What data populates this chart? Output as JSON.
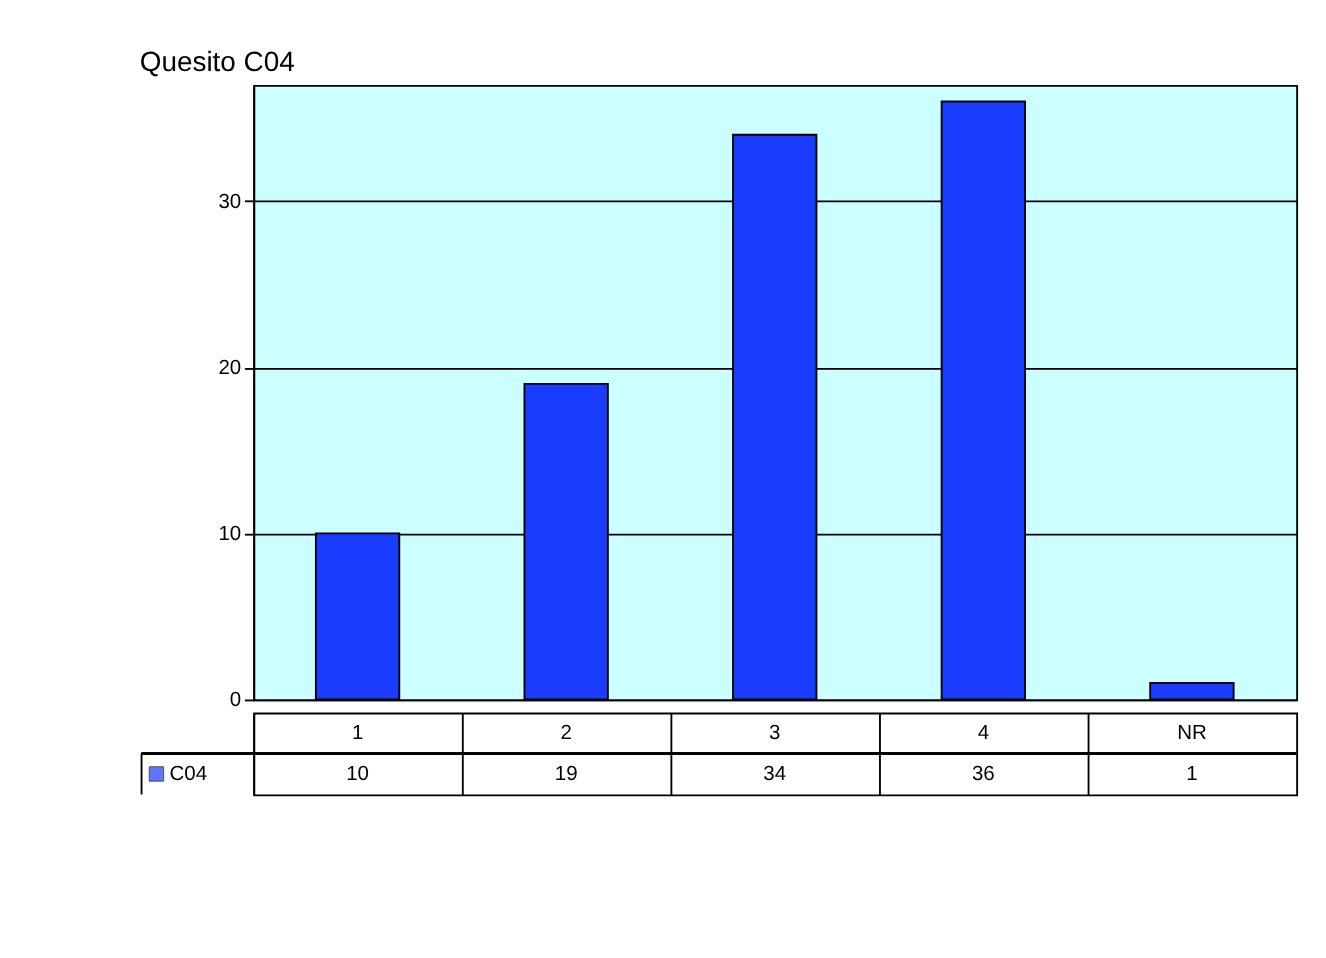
{
  "chart_data": {
    "type": "bar",
    "title": "Quesito C04",
    "categories": [
      "1",
      "2",
      "3",
      "4",
      "NR"
    ],
    "series": [
      {
        "name": "C04",
        "color": "#1a3cff",
        "values": [
          10,
          19,
          34,
          36,
          1
        ]
      }
    ],
    "ylim": [
      0,
      37
    ],
    "yticks": [
      0,
      10,
      20,
      30
    ],
    "grid": "y",
    "legend": "bottom left",
    "data_labels": true
  }
}
